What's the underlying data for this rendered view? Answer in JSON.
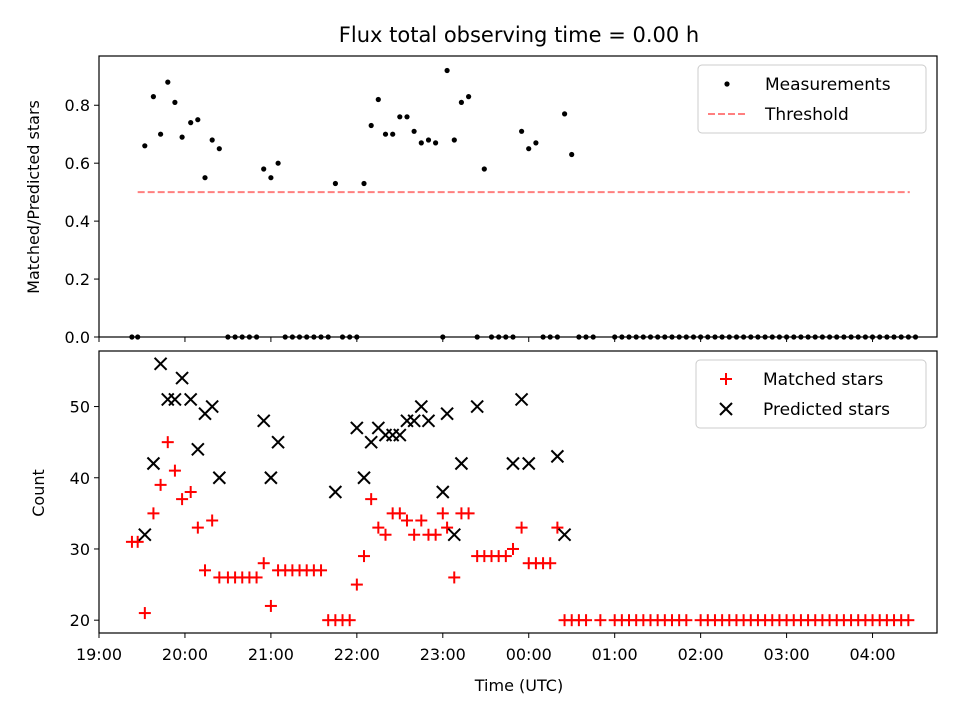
{
  "chart_data": [
    {
      "type": "scatter",
      "title": "Flux total observing time = 0.00 h",
      "xlabel": "",
      "ylabel": "Matched/Predicted stars",
      "ylim": [
        0,
        0.97
      ],
      "xlim": [
        "19:00",
        "04:45"
      ],
      "yticks": [
        {
          "value": 0.0,
          "label": "0.0"
        },
        {
          "value": 0.2,
          "label": "0.2"
        },
        {
          "value": 0.4,
          "label": "0.4"
        },
        {
          "value": 0.6,
          "label": "0.6"
        },
        {
          "value": 0.8,
          "label": "0.8"
        }
      ],
      "legend_position": "top-right",
      "series": [
        {
          "name": "Measurements",
          "marker": "dot",
          "color": "#000000",
          "points": [
            [
              "19:23",
              0
            ],
            [
              "19:27",
              0
            ],
            [
              "19:32",
              0.66
            ],
            [
              "19:38",
              0.83
            ],
            [
              "19:43",
              0.7
            ],
            [
              "19:48",
              0.88
            ],
            [
              "19:53",
              0.81
            ],
            [
              "19:58",
              0.69
            ],
            [
              "20:04",
              0.74
            ],
            [
              "20:09",
              0.75
            ],
            [
              "20:14",
              0.55
            ],
            [
              "20:19",
              0.68
            ],
            [
              "20:24",
              0.65
            ],
            [
              "20:30",
              0
            ],
            [
              "20:35",
              0
            ],
            [
              "20:40",
              0
            ],
            [
              "20:45",
              0
            ],
            [
              "20:50",
              0
            ],
            [
              "20:55",
              0.58
            ],
            [
              "21:00",
              0.55
            ],
            [
              "21:05",
              0.6
            ],
            [
              "21:10",
              0
            ],
            [
              "21:15",
              0
            ],
            [
              "21:20",
              0
            ],
            [
              "21:25",
              0
            ],
            [
              "21:30",
              0
            ],
            [
              "21:35",
              0
            ],
            [
              "21:40",
              0
            ],
            [
              "21:45",
              0.53
            ],
            [
              "21:50",
              0
            ],
            [
              "21:55",
              0
            ],
            [
              "22:00",
              0
            ],
            [
              "22:05",
              0.53
            ],
            [
              "22:10",
              0.73
            ],
            [
              "22:15",
              0.82
            ],
            [
              "22:20",
              0.7
            ],
            [
              "22:25",
              0.7
            ],
            [
              "22:30",
              0.76
            ],
            [
              "22:35",
              0.76
            ],
            [
              "22:40",
              0.71
            ],
            [
              "22:45",
              0.67
            ],
            [
              "22:50",
              0.68
            ],
            [
              "22:55",
              0.67
            ],
            [
              "23:00",
              0
            ],
            [
              "23:03",
              0.92
            ],
            [
              "23:08",
              0.68
            ],
            [
              "23:13",
              0.81
            ],
            [
              "23:18",
              0.83
            ],
            [
              "23:24",
              0
            ],
            [
              "23:29",
              0.58
            ],
            [
              "23:34",
              0
            ],
            [
              "23:39",
              0
            ],
            [
              "23:44",
              0
            ],
            [
              "23:49",
              0
            ],
            [
              "23:55",
              0.71
            ],
            [
              "00:00",
              0.65
            ],
            [
              "00:05",
              0.67
            ],
            [
              "00:10",
              0
            ],
            [
              "00:15",
              0
            ],
            [
              "00:20",
              0
            ],
            [
              "00:25",
              0.77
            ],
            [
              "00:30",
              0.63
            ],
            [
              "00:35",
              0
            ],
            [
              "00:40",
              0
            ],
            [
              "00:45",
              0
            ],
            [
              "01:00",
              0
            ],
            [
              "01:05",
              0
            ],
            [
              "01:10",
              0
            ],
            [
              "01:15",
              0
            ],
            [
              "01:20",
              0
            ],
            [
              "01:25",
              0
            ],
            [
              "01:30",
              0
            ],
            [
              "01:35",
              0
            ],
            [
              "01:40",
              0
            ],
            [
              "01:45",
              0
            ],
            [
              "01:50",
              0
            ],
            [
              "01:55",
              0
            ],
            [
              "02:00",
              0
            ],
            [
              "02:05",
              0
            ],
            [
              "02:10",
              0
            ],
            [
              "02:15",
              0
            ],
            [
              "02:20",
              0
            ],
            [
              "02:25",
              0
            ],
            [
              "02:30",
              0
            ],
            [
              "02:35",
              0
            ],
            [
              "02:40",
              0
            ],
            [
              "02:45",
              0
            ],
            [
              "02:50",
              0
            ],
            [
              "02:55",
              0
            ],
            [
              "03:00",
              0
            ],
            [
              "03:05",
              0
            ],
            [
              "03:10",
              0
            ],
            [
              "03:15",
              0
            ],
            [
              "03:20",
              0
            ],
            [
              "03:25",
              0
            ],
            [
              "03:30",
              0
            ],
            [
              "03:35",
              0
            ],
            [
              "03:40",
              0
            ],
            [
              "03:45",
              0
            ],
            [
              "03:50",
              0
            ],
            [
              "03:55",
              0
            ],
            [
              "04:00",
              0
            ],
            [
              "04:05",
              0
            ],
            [
              "04:10",
              0
            ],
            [
              "04:15",
              0
            ],
            [
              "04:20",
              0
            ],
            [
              "04:25",
              0
            ],
            [
              "04:30",
              0
            ]
          ]
        },
        {
          "name": "Threshold",
          "marker": "dashed-line",
          "color": "#ff7f7f",
          "points": [
            [
              "19:27",
              0.5
            ],
            [
              "04:26",
              0.5
            ]
          ]
        }
      ]
    },
    {
      "type": "scatter",
      "title": "",
      "xlabel": "Time (UTC)",
      "ylabel": "Count",
      "ylim": [
        18.2,
        57.8
      ],
      "xlim": [
        "19:00",
        "04:45"
      ],
      "yticks": [
        {
          "value": 20,
          "label": "20"
        },
        {
          "value": 30,
          "label": "30"
        },
        {
          "value": 40,
          "label": "40"
        },
        {
          "value": 50,
          "label": "50"
        }
      ],
      "xticks": [
        "19:00",
        "20:00",
        "21:00",
        "22:00",
        "23:00",
        "00:00",
        "01:00",
        "02:00",
        "03:00",
        "04:00"
      ],
      "legend_position": "top-right",
      "series": [
        {
          "name": "Matched stars",
          "marker": "plus",
          "color": "#ff0000",
          "points": [
            [
              "19:23",
              31
            ],
            [
              "19:27",
              31
            ],
            [
              "19:32",
              21
            ],
            [
              "19:38",
              35
            ],
            [
              "19:43",
              39
            ],
            [
              "19:48",
              45
            ],
            [
              "19:53",
              41
            ],
            [
              "19:58",
              37
            ],
            [
              "20:04",
              38
            ],
            [
              "20:09",
              33
            ],
            [
              "20:14",
              27
            ],
            [
              "20:19",
              34
            ],
            [
              "20:24",
              26
            ],
            [
              "20:30",
              26
            ],
            [
              "20:35",
              26
            ],
            [
              "20:40",
              26
            ],
            [
              "20:45",
              26
            ],
            [
              "20:50",
              26
            ],
            [
              "20:55",
              28
            ],
            [
              "21:00",
              22
            ],
            [
              "21:05",
              27
            ],
            [
              "21:10",
              27
            ],
            [
              "21:15",
              27
            ],
            [
              "21:20",
              27
            ],
            [
              "21:25",
              27
            ],
            [
              "21:30",
              27
            ],
            [
              "21:35",
              27
            ],
            [
              "21:40",
              20
            ],
            [
              "21:45",
              20
            ],
            [
              "21:50",
              20
            ],
            [
              "21:55",
              20
            ],
            [
              "22:00",
              25
            ],
            [
              "22:05",
              29
            ],
            [
              "22:10",
              37
            ],
            [
              "22:15",
              33
            ],
            [
              "22:20",
              32
            ],
            [
              "22:25",
              35
            ],
            [
              "22:30",
              35
            ],
            [
              "22:35",
              34
            ],
            [
              "22:40",
              32
            ],
            [
              "22:45",
              34
            ],
            [
              "22:50",
              32
            ],
            [
              "22:55",
              32
            ],
            [
              "23:00",
              35
            ],
            [
              "23:03",
              33
            ],
            [
              "23:08",
              26
            ],
            [
              "23:13",
              35
            ],
            [
              "23:18",
              35
            ],
            [
              "23:24",
              29
            ],
            [
              "23:29",
              29
            ],
            [
              "23:34",
              29
            ],
            [
              "23:39",
              29
            ],
            [
              "23:44",
              29
            ],
            [
              "23:49",
              30
            ],
            [
              "23:55",
              33
            ],
            [
              "00:00",
              28
            ],
            [
              "00:05",
              28
            ],
            [
              "00:10",
              28
            ],
            [
              "00:15",
              28
            ],
            [
              "00:20",
              33
            ],
            [
              "00:25",
              20
            ],
            [
              "00:30",
              20
            ],
            [
              "00:35",
              20
            ],
            [
              "00:40",
              20
            ],
            [
              "00:50",
              20
            ],
            [
              "01:00",
              20
            ],
            [
              "01:05",
              20
            ],
            [
              "01:10",
              20
            ],
            [
              "01:15",
              20
            ],
            [
              "01:20",
              20
            ],
            [
              "01:25",
              20
            ],
            [
              "01:30",
              20
            ],
            [
              "01:35",
              20
            ],
            [
              "01:40",
              20
            ],
            [
              "01:45",
              20
            ],
            [
              "01:50",
              20
            ],
            [
              "02:00",
              20
            ],
            [
              "02:05",
              20
            ],
            [
              "02:10",
              20
            ],
            [
              "02:15",
              20
            ],
            [
              "02:20",
              20
            ],
            [
              "02:25",
              20
            ],
            [
              "02:30",
              20
            ],
            [
              "02:35",
              20
            ],
            [
              "02:40",
              20
            ],
            [
              "02:45",
              20
            ],
            [
              "02:50",
              20
            ],
            [
              "02:55",
              20
            ],
            [
              "03:00",
              20
            ],
            [
              "03:05",
              20
            ],
            [
              "03:10",
              20
            ],
            [
              "03:15",
              20
            ],
            [
              "03:20",
              20
            ],
            [
              "03:25",
              20
            ],
            [
              "03:30",
              20
            ],
            [
              "03:35",
              20
            ],
            [
              "03:40",
              20
            ],
            [
              "03:45",
              20
            ],
            [
              "03:50",
              20
            ],
            [
              "03:55",
              20
            ],
            [
              "04:00",
              20
            ],
            [
              "04:05",
              20
            ],
            [
              "04:10",
              20
            ],
            [
              "04:15",
              20
            ],
            [
              "04:20",
              20
            ],
            [
              "04:25",
              20
            ]
          ]
        },
        {
          "name": "Predicted stars",
          "marker": "x",
          "color": "#000000",
          "points": [
            [
              "19:32",
              32
            ],
            [
              "19:38",
              42
            ],
            [
              "19:43",
              56
            ],
            [
              "19:48",
              51
            ],
            [
              "19:53",
              51
            ],
            [
              "19:58",
              54
            ],
            [
              "20:04",
              51
            ],
            [
              "20:09",
              44
            ],
            [
              "20:14",
              49
            ],
            [
              "20:19",
              50
            ],
            [
              "20:24",
              40
            ],
            [
              "20:55",
              48
            ],
            [
              "21:00",
              40
            ],
            [
              "21:05",
              45
            ],
            [
              "21:45",
              38
            ],
            [
              "22:00",
              47
            ],
            [
              "22:05",
              40
            ],
            [
              "22:10",
              45
            ],
            [
              "22:15",
              47
            ],
            [
              "22:20",
              46
            ],
            [
              "22:25",
              46
            ],
            [
              "22:30",
              46
            ],
            [
              "22:35",
              48
            ],
            [
              "22:40",
              48
            ],
            [
              "22:45",
              50
            ],
            [
              "22:50",
              48
            ],
            [
              "23:00",
              38
            ],
            [
              "23:03",
              49
            ],
            [
              "23:08",
              32
            ],
            [
              "23:13",
              42
            ],
            [
              "23:24",
              50
            ],
            [
              "23:49",
              42
            ],
            [
              "23:55",
              51
            ],
            [
              "00:00",
              42
            ],
            [
              "00:20",
              43
            ],
            [
              "00:25",
              32
            ]
          ]
        }
      ]
    }
  ]
}
